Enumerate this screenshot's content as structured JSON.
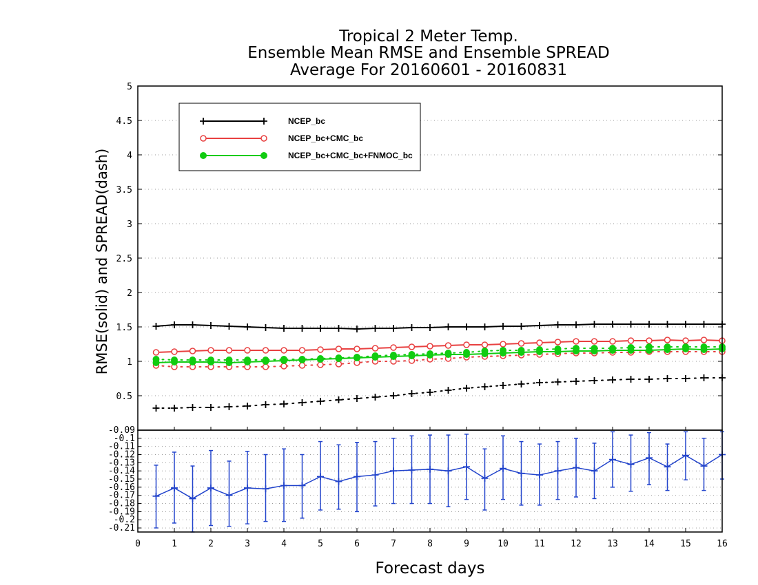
{
  "chart_data": [
    {
      "type": "line",
      "title_lines": [
        "Tropical 2 Meter Temp.",
        "Ensemble Mean RMSE and Ensemble SPREAD",
        "Average For 20160601 - 20160831"
      ],
      "ylabel": "RMSE(solid) and SPREAD(dash)",
      "xlabel": "Forecast days",
      "xlim": [
        0,
        16
      ],
      "ylim": [
        0,
        5
      ],
      "x_ticks": [
        "0",
        "1",
        "2",
        "3",
        "4",
        "5",
        "6",
        "7",
        "8",
        "9",
        "10",
        "11",
        "12",
        "13",
        "14",
        "15",
        "16"
      ],
      "y_ticks": [
        "0.5",
        "1",
        "1.5",
        "2",
        "2.5",
        "3",
        "3.5",
        "4",
        "4.5",
        "5"
      ],
      "grid": true,
      "legend_position": "top-left",
      "x": [
        0.5,
        1,
        1.5,
        2,
        2.5,
        3,
        3.5,
        4,
        4.5,
        5,
        5.5,
        6,
        6.5,
        7,
        7.5,
        8,
        8.5,
        9,
        9.5,
        10,
        10.5,
        11,
        11.5,
        12,
        12.5,
        13,
        13.5,
        14,
        14.5,
        15,
        15.5,
        16
      ],
      "series": [
        {
          "name": "NCEP_bc",
          "color": "#000000",
          "marker": "plus",
          "rmse": [
            1.51,
            1.53,
            1.53,
            1.52,
            1.51,
            1.5,
            1.49,
            1.48,
            1.48,
            1.48,
            1.48,
            1.47,
            1.48,
            1.48,
            1.49,
            1.49,
            1.5,
            1.5,
            1.5,
            1.51,
            1.51,
            1.52,
            1.53,
            1.53,
            1.54,
            1.54,
            1.54,
            1.54,
            1.54,
            1.54,
            1.54,
            1.54
          ],
          "spread": [
            0.32,
            0.32,
            0.33,
            0.33,
            0.34,
            0.35,
            0.37,
            0.38,
            0.4,
            0.42,
            0.44,
            0.46,
            0.48,
            0.5,
            0.53,
            0.55,
            0.58,
            0.61,
            0.63,
            0.65,
            0.67,
            0.69,
            0.7,
            0.71,
            0.72,
            0.73,
            0.74,
            0.74,
            0.75,
            0.75,
            0.76,
            0.76
          ]
        },
        {
          "name": "NCEP_bc+CMC_bc",
          "color": "#e84040",
          "marker": "open-circle",
          "rmse": [
            1.13,
            1.14,
            1.15,
            1.16,
            1.16,
            1.16,
            1.16,
            1.16,
            1.16,
            1.17,
            1.18,
            1.18,
            1.19,
            1.2,
            1.21,
            1.22,
            1.23,
            1.24,
            1.24,
            1.25,
            1.26,
            1.27,
            1.28,
            1.29,
            1.29,
            1.29,
            1.3,
            1.3,
            1.31,
            1.3,
            1.31,
            1.3
          ],
          "spread": [
            0.94,
            0.92,
            0.92,
            0.92,
            0.92,
            0.92,
            0.92,
            0.93,
            0.94,
            0.95,
            0.96,
            0.98,
            1.0,
            1.0,
            1.01,
            1.03,
            1.04,
            1.06,
            1.07,
            1.08,
            1.09,
            1.1,
            1.11,
            1.12,
            1.12,
            1.13,
            1.13,
            1.14,
            1.14,
            1.14,
            1.14,
            1.14
          ]
        },
        {
          "name": "NCEP_bc+CMC_bc+FNMOC_bc",
          "color": "#11cc11",
          "marker": "filled-circle",
          "rmse": [
            0.98,
            0.99,
            0.99,
            0.99,
            0.98,
            0.99,
            1.0,
            1.01,
            1.02,
            1.03,
            1.04,
            1.05,
            1.06,
            1.07,
            1.08,
            1.09,
            1.1,
            1.1,
            1.11,
            1.12,
            1.13,
            1.14,
            1.14,
            1.15,
            1.15,
            1.16,
            1.16,
            1.16,
            1.17,
            1.18,
            1.17,
            1.18
          ],
          "spread": [
            1.03,
            1.02,
            1.02,
            1.02,
            1.02,
            1.02,
            1.02,
            1.03,
            1.03,
            1.04,
            1.05,
            1.06,
            1.08,
            1.09,
            1.1,
            1.11,
            1.12,
            1.13,
            1.15,
            1.16,
            1.16,
            1.17,
            1.18,
            1.19,
            1.19,
            1.19,
            1.2,
            1.21,
            1.21,
            1.21,
            1.21,
            1.21
          ]
        }
      ]
    },
    {
      "type": "line",
      "xlim": [
        0,
        16
      ],
      "ylim": [
        -0.215,
        -0.09
      ],
      "y_ticks": [
        "-0.09",
        "-0.1",
        "-0.11",
        "-0.12",
        "-0.13",
        "-0.14",
        "-0.15",
        "-0.16",
        "-0.17",
        "-0.18",
        "-0.19",
        "-0.2",
        "-0.21"
      ],
      "grid": true,
      "series": [
        {
          "color": "#2244cc",
          "marker": "plus",
          "x": [
            0.5,
            1,
            1.5,
            2,
            2.5,
            3,
            3.5,
            4,
            4.5,
            5,
            5.5,
            6,
            6.5,
            7,
            7.5,
            8,
            8.5,
            9,
            9.5,
            10,
            10.5,
            11,
            11.5,
            12,
            12.5,
            13,
            13.5,
            14,
            14.5,
            15,
            15.5,
            16
          ],
          "mean": [
            -0.171,
            -0.161,
            -0.174,
            -0.161,
            -0.17,
            -0.161,
            -0.162,
            -0.158,
            -0.158,
            -0.147,
            -0.153,
            -0.147,
            -0.145,
            -0.14,
            -0.139,
            -0.138,
            -0.14,
            -0.135,
            -0.149,
            -0.137,
            -0.143,
            -0.145,
            -0.14,
            -0.136,
            -0.14,
            -0.126,
            -0.132,
            -0.124,
            -0.135,
            -0.121,
            -0.134,
            -0.12
          ],
          "upper": [
            -0.133,
            -0.117,
            -0.134,
            -0.115,
            -0.128,
            -0.116,
            -0.12,
            -0.113,
            -0.12,
            -0.104,
            -0.108,
            -0.105,
            -0.104,
            -0.1,
            -0.097,
            -0.096,
            -0.096,
            -0.095,
            -0.113,
            -0.097,
            -0.104,
            -0.107,
            -0.104,
            -0.1,
            -0.106,
            -0.092,
            -0.096,
            -0.093,
            -0.107,
            -0.092,
            -0.1,
            -0.092
          ],
          "lower": [
            -0.21,
            -0.204,
            -0.215,
            -0.207,
            -0.208,
            -0.205,
            -0.202,
            -0.202,
            -0.198,
            -0.188,
            -0.187,
            -0.19,
            -0.183,
            -0.18,
            -0.18,
            -0.18,
            -0.184,
            -0.175,
            -0.188,
            -0.175,
            -0.182,
            -0.182,
            -0.175,
            -0.172,
            -0.174,
            -0.16,
            -0.165,
            -0.157,
            -0.164,
            -0.151,
            -0.164,
            -0.15
          ]
        }
      ]
    }
  ]
}
